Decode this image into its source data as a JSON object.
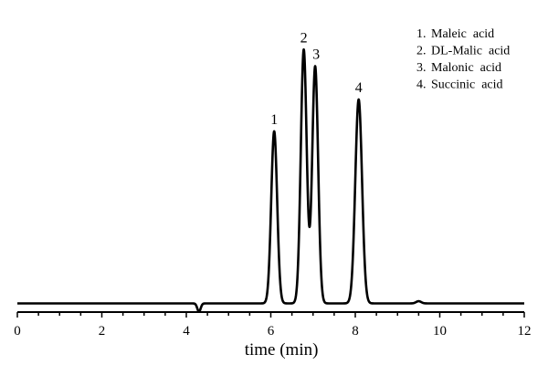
{
  "chart_data": {
    "type": "line",
    "title": "",
    "xlabel": "time (min)",
    "ylabel": "",
    "xlim": [
      0,
      12
    ],
    "ylim": [
      0,
      100
    ],
    "grid": false,
    "legend_position": "top-right",
    "x_ticks": [
      0,
      2,
      4,
      6,
      8,
      10,
      12
    ],
    "x_tick_labels": [
      "0",
      "2",
      "4",
      "6",
      "8",
      "10",
      "12"
    ],
    "x_minor_step": 0.5,
    "baseline": 0.8,
    "peaks": [
      {
        "id": "1",
        "name": "Maleic  acid",
        "retention_time": 6.08,
        "height": 63.0,
        "width": 0.07
      },
      {
        "id": "2",
        "name": "DL-Malic  acid",
        "retention_time": 6.78,
        "height": 92.5,
        "width": 0.07
      },
      {
        "id": "3",
        "name": "Malonic  acid",
        "retention_time": 7.05,
        "height": 86.5,
        "width": 0.07
      },
      {
        "id": "4",
        "name": "Succinic  acid",
        "retention_time": 8.08,
        "height": 74.5,
        "width": 0.08
      }
    ],
    "minor_features": [
      {
        "type": "dip",
        "x": 4.3,
        "height": -3.0,
        "width": 0.04
      },
      {
        "type": "bump",
        "x": 9.5,
        "height": 0.8,
        "width": 0.06
      }
    ],
    "legend": [
      {
        "number": "1.",
        "label": "Maleic  acid"
      },
      {
        "number": "2.",
        "label": "DL-Malic  acid"
      },
      {
        "number": "3.",
        "label": "Malonic  acid"
      },
      {
        "number": "4.",
        "label": "Succinic  acid"
      }
    ]
  }
}
